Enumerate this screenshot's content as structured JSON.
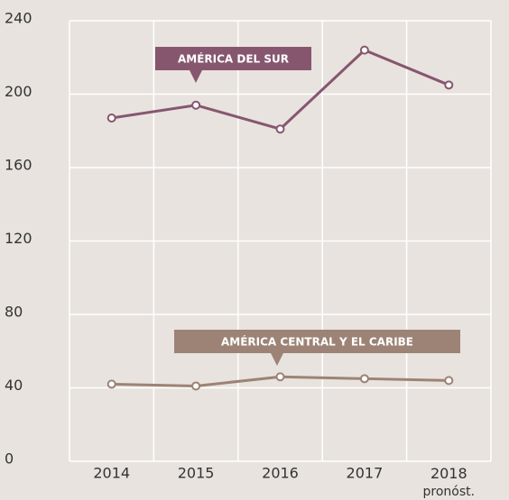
{
  "chart_data": {
    "type": "line",
    "categories": [
      "2014",
      "2015",
      "2016",
      "2017",
      "2018 pronóst."
    ],
    "series": [
      {
        "name": "AMÉRICA DEL SUR",
        "color": "#86566f",
        "values": [
          187,
          194,
          181,
          224,
          205
        ]
      },
      {
        "name": "AMÉRICA CENTRAL Y EL CARIBE",
        "color": "#9c8375",
        "values": [
          42,
          41,
          46,
          45,
          44
        ]
      }
    ],
    "ylim": [
      0,
      240
    ],
    "yticks": [
      0,
      40,
      80,
      120,
      160,
      200,
      240
    ],
    "grid": true
  }
}
